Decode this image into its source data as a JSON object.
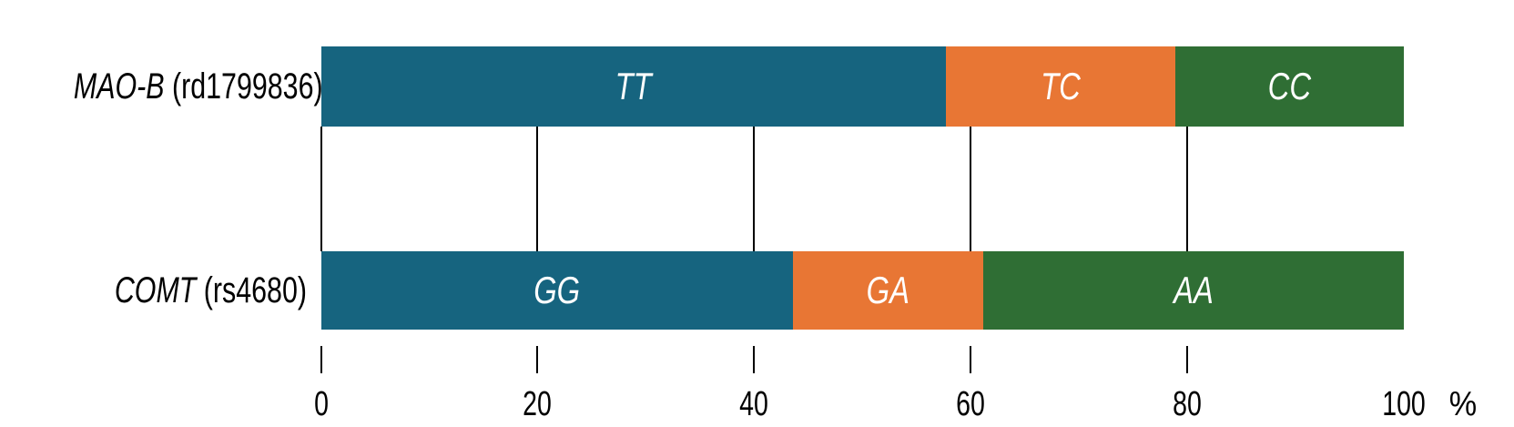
{
  "chart_data": {
    "type": "bar",
    "orientation": "horizontal",
    "stacked": true,
    "title": "",
    "unit": "%",
    "grid": true,
    "x_axis": {
      "range": [
        0,
        100
      ],
      "unit_label": "%",
      "ticks": [
        {
          "label": "0",
          "value": 0,
          "has_mark": true
        },
        {
          "label": "20",
          "value": 20,
          "has_mark": true
        },
        {
          "label": "40",
          "value": 40,
          "has_mark": true
        },
        {
          "label": "60",
          "value": 60,
          "has_mark": true
        },
        {
          "label": "80",
          "value": 80,
          "has_mark": true
        },
        {
          "label": "100",
          "value": 100,
          "has_mark": false
        }
      ]
    },
    "colors": {
      "first_genotype": "#16647f",
      "heterozygote": "#e87634",
      "second_genotype": "#2f6e34",
      "bar_label_text": "#ffffff",
      "axis_and_grid": "#000000"
    },
    "rows": [
      {
        "gene": "MAO-B",
        "suffix": " (rd1799836)",
        "segments": [
          {
            "label": "TT",
            "value": 57.7,
            "color": "#16647f"
          },
          {
            "label": "TC",
            "value": 21.2,
            "color": "#e87634"
          },
          {
            "label": "CC",
            "value": 21.1,
            "color": "#2f6e34"
          }
        ]
      },
      {
        "gene": "COMT",
        "suffix": " (rs4680)",
        "segments": [
          {
            "label": "GG",
            "value": 43.6,
            "color": "#16647f"
          },
          {
            "label": "GA",
            "value": 17.6,
            "color": "#e87634"
          },
          {
            "label": "AA",
            "value": 38.8,
            "color": "#2f6e34"
          }
        ]
      }
    ]
  }
}
